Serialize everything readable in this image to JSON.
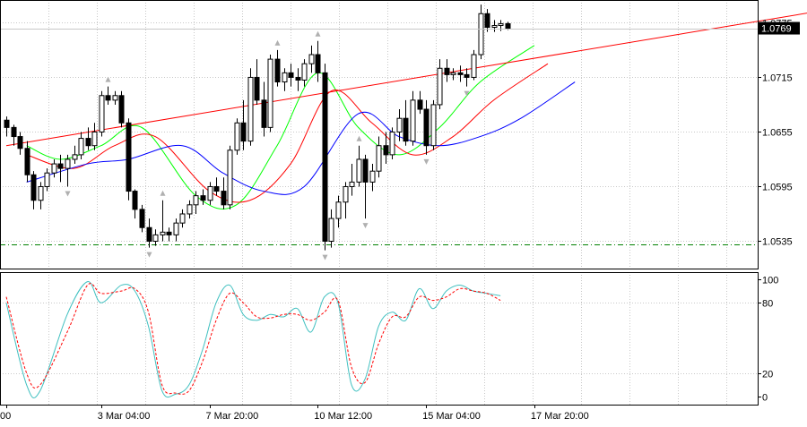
{
  "chart_data": [
    {
      "type": "candlestick",
      "panel": "price",
      "y_ticks": [
        "1.0775",
        "1.0715",
        "1.0655",
        "1.0595",
        "1.0535"
      ],
      "y_tick_values": [
        1.0775,
        1.0715,
        1.0655,
        1.0595,
        1.0535
      ],
      "ylim": [
        1.0505,
        1.08
      ],
      "current_price_label": "1.0769",
      "current_price": 1.0769,
      "x_ticks": [
        "00",
        "3 Mar 04:00",
        "7 Mar 20:00",
        "10 Mar 12:00",
        "15 Mar 04:00",
        "17 Mar 20:00"
      ],
      "x_tick_index": [
        0,
        14,
        30,
        46,
        62,
        78
      ],
      "horizontal_line": 1.0532,
      "trendline": [
        [
          0,
          1.064
        ],
        [
          130,
          1.08
        ]
      ],
      "candles": [
        [
          1.0668,
          1.0672,
          1.065,
          1.066
        ],
        [
          1.066,
          1.0663,
          1.064,
          1.065
        ],
        [
          1.065,
          1.0655,
          1.063,
          1.0637
        ],
        [
          1.0637,
          1.0645,
          1.06,
          1.0608
        ],
        [
          1.0608,
          1.0612,
          1.057,
          1.058
        ],
        [
          1.058,
          1.06,
          1.057,
          1.0595
        ],
        [
          1.0595,
          1.0615,
          1.059,
          1.061
        ],
        [
          1.061,
          1.0625,
          1.0605,
          1.062
        ],
        [
          1.062,
          1.063,
          1.06,
          1.0615
        ],
        [
          1.0615,
          1.063,
          1.0595,
          1.0625
        ],
        [
          1.0625,
          1.064,
          1.062,
          1.063
        ],
        [
          1.063,
          1.0655,
          1.0625,
          1.0648
        ],
        [
          1.0648,
          1.066,
          1.0635,
          1.064
        ],
        [
          1.064,
          1.0665,
          1.0635,
          1.0655
        ],
        [
          1.0655,
          1.07,
          1.065,
          1.0695
        ],
        [
          1.0695,
          1.0705,
          1.0685,
          1.069
        ],
        [
          1.069,
          1.07,
          1.0685,
          1.0695
        ],
        [
          1.0695,
          1.07,
          1.066,
          1.0665
        ],
        [
          1.0665,
          1.067,
          1.058,
          1.059
        ],
        [
          1.059,
          1.0592,
          1.056,
          1.057
        ],
        [
          1.057,
          1.0575,
          1.0545,
          1.055
        ],
        [
          1.055,
          1.056,
          1.0528,
          1.0535
        ],
        [
          1.0535,
          1.0548,
          1.053,
          1.0542
        ],
        [
          1.0542,
          1.058,
          1.0535,
          1.0545
        ],
        [
          1.0545,
          1.055,
          1.0535,
          1.0542
        ],
        [
          1.0542,
          1.056,
          1.0535,
          1.0555
        ],
        [
          1.0555,
          1.057,
          1.055,
          1.0565
        ],
        [
          1.0565,
          1.058,
          1.056,
          1.0575
        ],
        [
          1.0575,
          1.059,
          1.0565,
          1.0585
        ],
        [
          1.0585,
          1.0592,
          1.0575,
          1.058
        ],
        [
          1.058,
          1.06,
          1.0575,
          1.0595
        ],
        [
          1.0595,
          1.0605,
          1.0585,
          1.059
        ],
        [
          1.059,
          1.0605,
          1.057,
          1.0575
        ],
        [
          1.0575,
          1.064,
          1.057,
          1.0635
        ],
        [
          1.0635,
          1.067,
          1.063,
          1.0665
        ],
        [
          1.0665,
          1.069,
          1.0635,
          1.0645
        ],
        [
          1.0645,
          1.0725,
          1.064,
          1.0715
        ],
        [
          1.0715,
          1.0735,
          1.0685,
          1.069
        ],
        [
          1.069,
          1.071,
          1.065,
          1.066
        ],
        [
          1.066,
          1.074,
          1.0655,
          1.0735
        ],
        [
          1.0735,
          1.0745,
          1.0705,
          1.071
        ],
        [
          1.071,
          1.0725,
          1.07,
          1.072
        ],
        [
          1.072,
          1.073,
          1.0705,
          1.0715
        ],
        [
          1.0715,
          1.0725,
          1.07,
          1.0712
        ],
        [
          1.0712,
          1.0735,
          1.0705,
          1.073
        ],
        [
          1.073,
          1.075,
          1.072,
          1.074
        ],
        [
          1.074,
          1.0755,
          1.071,
          1.072
        ],
        [
          1.072,
          1.073,
          1.0525,
          1.0535
        ],
        [
          1.0535,
          1.057,
          1.0528,
          1.056
        ],
        [
          1.056,
          1.0585,
          1.055,
          1.0578
        ],
        [
          1.0578,
          1.06,
          1.056,
          1.0595
        ],
        [
          1.0595,
          1.062,
          1.0585,
          1.06
        ],
        [
          1.06,
          1.064,
          1.0595,
          1.0625
        ],
        [
          1.0625,
          1.063,
          1.056,
          1.06
        ],
        [
          1.06,
          1.062,
          1.059,
          1.0612
        ],
        [
          1.0612,
          1.065,
          1.0605,
          1.064
        ],
        [
          1.064,
          1.0655,
          1.062,
          1.063
        ],
        [
          1.063,
          1.066,
          1.0625,
          1.0655
        ],
        [
          1.0655,
          1.068,
          1.0645,
          1.067
        ],
        [
          1.067,
          1.069,
          1.064,
          1.0645
        ],
        [
          1.0645,
          1.07,
          1.064,
          1.069
        ],
        [
          1.069,
          1.07,
          1.0675,
          1.068
        ],
        [
          1.068,
          1.069,
          1.063,
          1.064
        ],
        [
          1.064,
          1.069,
          1.0635,
          1.0685
        ],
        [
          1.0685,
          1.0735,
          1.068,
          1.0725
        ],
        [
          1.0725,
          1.0735,
          1.071,
          1.0718
        ],
        [
          1.0718,
          1.0725,
          1.0712,
          1.072
        ],
        [
          1.072,
          1.0728,
          1.071,
          1.0718
        ],
        [
          1.0718,
          1.0725,
          1.0705,
          1.0715
        ],
        [
          1.0715,
          1.0745,
          1.0712,
          1.074
        ],
        [
          1.074,
          1.0795,
          1.0735,
          1.0785
        ],
        [
          1.0785,
          1.079,
          1.0765,
          1.077
        ],
        [
          1.077,
          1.0778,
          1.0765,
          1.0772
        ],
        [
          1.0772,
          1.0778,
          1.0766,
          1.0774
        ],
        [
          1.0774,
          1.0776,
          1.0767,
          1.0769
        ]
      ],
      "moving_averages": [
        {
          "color": "#00ff00",
          "values": [
            [
              3,
              1.064
            ],
            [
              8,
              1.0625
            ],
            [
              14,
              1.064
            ],
            [
              20,
              1.066
            ],
            [
              28,
              1.0585
            ],
            [
              34,
              1.0575
            ],
            [
              40,
              1.064
            ],
            [
              46,
              1.072
            ],
            [
              52,
              1.066
            ],
            [
              58,
              1.063
            ],
            [
              64,
              1.066
            ],
            [
              70,
              1.071
            ],
            [
              78,
              1.075
            ]
          ]
        },
        {
          "color": "#ff0000",
          "values": [
            [
              3,
              1.063
            ],
            [
              10,
              1.0615
            ],
            [
              16,
              1.064
            ],
            [
              22,
              1.065
            ],
            [
              30,
              1.059
            ],
            [
              36,
              1.058
            ],
            [
              42,
              1.062
            ],
            [
              48,
              1.07
            ],
            [
              54,
              1.0665
            ],
            [
              60,
              1.063
            ],
            [
              66,
              1.065
            ],
            [
              72,
              1.069
            ],
            [
              80,
              1.073
            ]
          ]
        },
        {
          "color": "#0000ff",
          "values": [
            [
              3,
              1.06
            ],
            [
              12,
              1.062
            ],
            [
              18,
              1.0625
            ],
            [
              26,
              1.064
            ],
            [
              32,
              1.061
            ],
            [
              38,
              1.059
            ],
            [
              44,
              1.0595
            ],
            [
              52,
              1.0675
            ],
            [
              58,
              1.065
            ],
            [
              64,
              1.064
            ],
            [
              70,
              1.065
            ],
            [
              76,
              1.067
            ],
            [
              84,
              1.071
            ]
          ]
        }
      ]
    },
    {
      "type": "line",
      "panel": "stochastic",
      "y_ticks": [
        "100",
        "80",
        "20",
        "0"
      ],
      "y_tick_values": [
        100,
        80,
        20,
        0
      ],
      "ylim": [
        0,
        100
      ],
      "series": [
        {
          "color": "#40c0c0",
          "style": "solid",
          "values": [
            [
              0,
              80
            ],
            [
              3,
              10
            ],
            [
              5,
              5
            ],
            [
              9,
              70
            ],
            [
              12,
              98
            ],
            [
              14,
              80
            ],
            [
              17,
              95
            ],
            [
              19,
              90
            ],
            [
              21,
              60
            ],
            [
              23,
              5
            ],
            [
              25,
              2
            ],
            [
              27,
              10
            ],
            [
              29,
              40
            ],
            [
              31,
              80
            ],
            [
              33,
              95
            ],
            [
              35,
              70
            ],
            [
              37,
              65
            ],
            [
              39,
              70
            ],
            [
              41,
              68
            ],
            [
              43,
              75
            ],
            [
              45,
              55
            ],
            [
              47,
              85
            ],
            [
              49,
              80
            ],
            [
              51,
              10
            ],
            [
              53,
              15
            ],
            [
              55,
              60
            ],
            [
              57,
              72
            ],
            [
              59,
              65
            ],
            [
              61,
              92
            ],
            [
              63,
              75
            ],
            [
              65,
              90
            ],
            [
              67,
              95
            ],
            [
              69,
              90
            ],
            [
              71,
              88
            ],
            [
              73,
              86
            ]
          ]
        },
        {
          "color": "#ff0000",
          "style": "dashed",
          "values": [
            [
              0,
              85
            ],
            [
              3,
              20
            ],
            [
              5,
              10
            ],
            [
              9,
              55
            ],
            [
              12,
              95
            ],
            [
              14,
              88
            ],
            [
              17,
              90
            ],
            [
              19,
              92
            ],
            [
              21,
              72
            ],
            [
              23,
              10
            ],
            [
              25,
              3
            ],
            [
              27,
              5
            ],
            [
              29,
              30
            ],
            [
              31,
              65
            ],
            [
              33,
              88
            ],
            [
              35,
              80
            ],
            [
              37,
              68
            ],
            [
              39,
              67
            ],
            [
              41,
              70
            ],
            [
              43,
              70
            ],
            [
              45,
              65
            ],
            [
              47,
              72
            ],
            [
              49,
              82
            ],
            [
              51,
              25
            ],
            [
              53,
              12
            ],
            [
              55,
              45
            ],
            [
              57,
              68
            ],
            [
              59,
              68
            ],
            [
              61,
              85
            ],
            [
              63,
              82
            ],
            [
              65,
              85
            ],
            [
              67,
              92
            ],
            [
              69,
              90
            ],
            [
              71,
              88
            ],
            [
              73,
              82
            ]
          ]
        }
      ]
    }
  ]
}
